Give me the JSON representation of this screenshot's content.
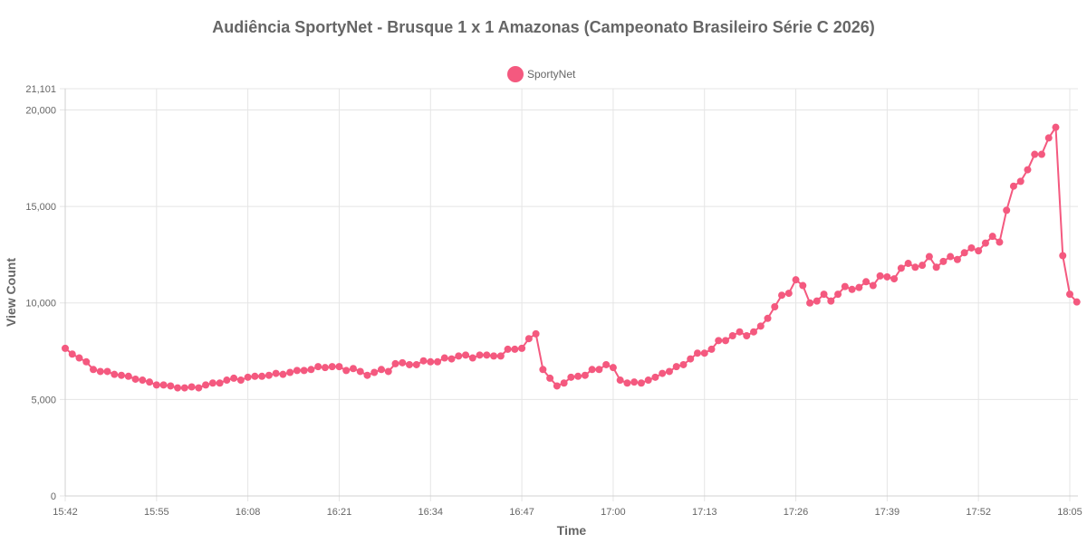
{
  "chart_data": {
    "type": "line",
    "title": "Audiência SportyNet - Brusque 1 x 1 Amazonas (Campeonato Brasileiro Série C 2026)",
    "xlabel": "Time",
    "ylabel": "View Count",
    "x_ticks": [
      "15:42",
      "15:55",
      "16:08",
      "16:21",
      "16:34",
      "16:47",
      "17:00",
      "17:13",
      "17:26",
      "17:39",
      "17:52",
      "18:05"
    ],
    "y_ticks": [
      "0",
      "5,000",
      "10,000",
      "15,000",
      "20,000",
      "21,101"
    ],
    "y_tick_values": [
      0,
      5000,
      10000,
      15000,
      20000,
      21101
    ],
    "ylim": [
      0,
      21101
    ],
    "x_range": [
      "15:42",
      "18:05"
    ],
    "grid": true,
    "legend_position": "top-center",
    "series": [
      {
        "name": "SportyNet",
        "color": "#f4597f",
        "x": [
          "15:42",
          "15:43",
          "15:44",
          "15:45",
          "15:46",
          "15:47",
          "15:48",
          "15:49",
          "15:50",
          "15:51",
          "15:52",
          "15:53",
          "15:54",
          "15:55",
          "15:56",
          "15:57",
          "15:58",
          "15:59",
          "16:00",
          "16:01",
          "16:02",
          "16:03",
          "16:04",
          "16:05",
          "16:06",
          "16:07",
          "16:08",
          "16:09",
          "16:10",
          "16:11",
          "16:12",
          "16:13",
          "16:14",
          "16:15",
          "16:16",
          "16:17",
          "16:18",
          "16:19",
          "16:20",
          "16:21",
          "16:22",
          "16:23",
          "16:24",
          "16:25",
          "16:26",
          "16:27",
          "16:28",
          "16:29",
          "16:30",
          "16:31",
          "16:32",
          "16:33",
          "16:34",
          "16:35",
          "16:36",
          "16:37",
          "16:38",
          "16:39",
          "16:40",
          "16:41",
          "16:42",
          "16:43",
          "16:44",
          "16:45",
          "16:46",
          "16:47",
          "16:48",
          "16:49",
          "16:50",
          "16:51",
          "16:52",
          "16:53",
          "16:54",
          "16:55",
          "16:56",
          "16:57",
          "16:58",
          "16:59",
          "17:00",
          "17:01",
          "17:02",
          "17:03",
          "17:04",
          "17:05",
          "17:06",
          "17:07",
          "17:08",
          "17:09",
          "17:10",
          "17:11",
          "17:12",
          "17:13",
          "17:14",
          "17:15",
          "17:16",
          "17:17",
          "17:18",
          "17:19",
          "17:20",
          "17:21",
          "17:22",
          "17:23",
          "17:24",
          "17:25",
          "17:26",
          "17:27",
          "17:28",
          "17:29",
          "17:30",
          "17:31",
          "17:32",
          "17:33",
          "17:34",
          "17:35",
          "17:36",
          "17:37",
          "17:38",
          "17:39",
          "17:40",
          "17:41",
          "17:42",
          "17:43",
          "17:44",
          "17:45",
          "17:46",
          "17:47",
          "17:48",
          "17:49",
          "17:50",
          "17:51",
          "17:52",
          "17:53",
          "17:54",
          "17:55",
          "17:56",
          "17:57",
          "17:58",
          "17:59",
          "18:00",
          "18:01",
          "18:02",
          "18:03",
          "18:04",
          "18:05",
          "18:06"
        ],
        "values": [
          7650,
          7350,
          7150,
          6950,
          6550,
          6450,
          6450,
          6300,
          6250,
          6200,
          6050,
          6000,
          5900,
          5750,
          5750,
          5700,
          5600,
          5600,
          5650,
          5600,
          5750,
          5850,
          5850,
          6000,
          6100,
          6000,
          6150,
          6200,
          6200,
          6250,
          6350,
          6300,
          6400,
          6500,
          6500,
          6550,
          6700,
          6650,
          6700,
          6700,
          6500,
          6600,
          6450,
          6250,
          6400,
          6550,
          6450,
          6850,
          6900,
          6800,
          6800,
          7000,
          6950,
          6950,
          7150,
          7100,
          7250,
          7300,
          7150,
          7300,
          7300,
          7250,
          7250,
          7600,
          7600,
          7650,
          8150,
          8400,
          6550,
          6100,
          5700,
          5850,
          6150,
          6200,
          6250,
          6550,
          6550,
          6800,
          6650,
          6000,
          5850,
          5900,
          5850,
          6000,
          6150,
          6350,
          6450,
          6700,
          6800,
          7100,
          7400,
          7400,
          7600,
          8050,
          8050,
          8300,
          8500,
          8300,
          8500,
          8800,
          9200,
          9800,
          10400,
          10500,
          11200,
          10900,
          10000,
          10100,
          10450,
          10100,
          10450,
          10850,
          10700,
          10800,
          11100,
          10900,
          11400,
          11350,
          11250,
          11800,
          12050,
          11850,
          11950,
          12400,
          11850,
          12150,
          12400,
          12250,
          12600,
          12850,
          12700,
          13100,
          13450,
          13150,
          14800,
          16050,
          16300,
          16900,
          17700,
          17700,
          18550,
          19100,
          12450,
          10450,
          10050
        ]
      }
    ]
  }
}
